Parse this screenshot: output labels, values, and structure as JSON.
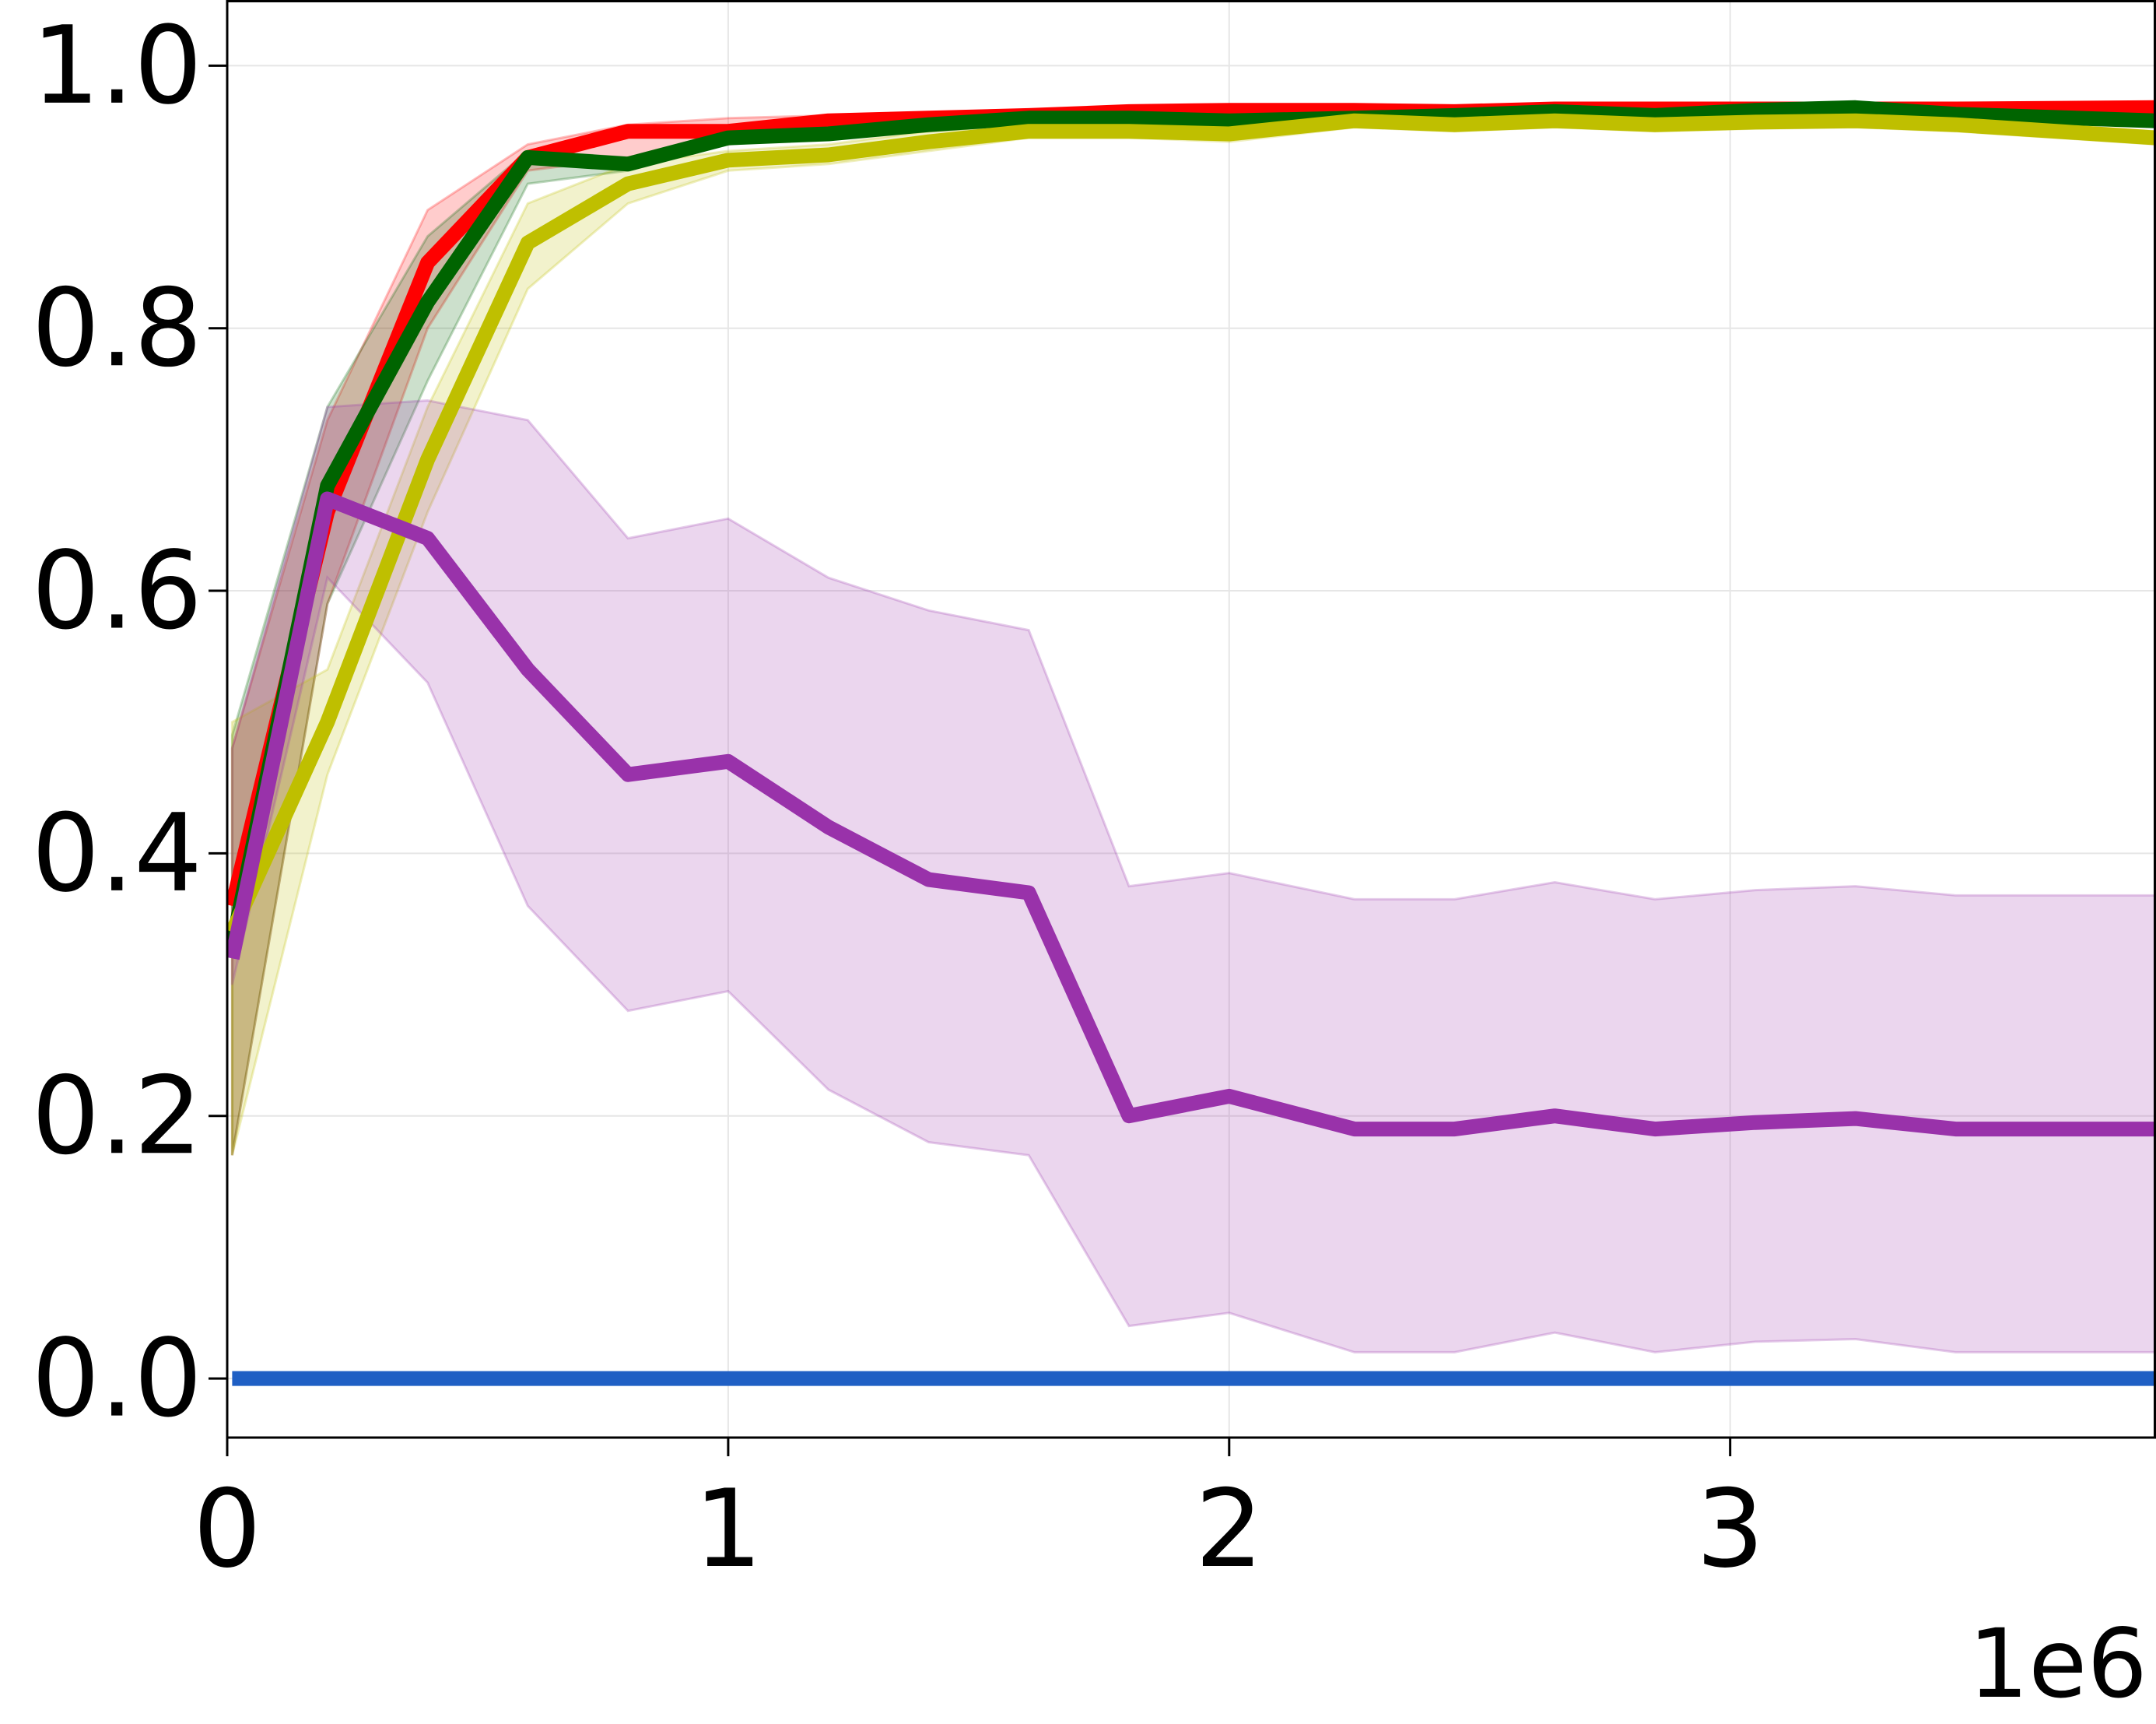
{
  "chart_data": {
    "type": "line",
    "title": "",
    "xlabel": "",
    "ylabel": "",
    "x_offset_label": "1e6",
    "xlim": [
      0,
      3850000
    ],
    "ylim": [
      -0.045,
      1.05
    ],
    "x_ticks": [
      {
        "value": 0,
        "label": "0"
      },
      {
        "value": 1000000,
        "label": "1"
      },
      {
        "value": 2000000,
        "label": "2"
      },
      {
        "value": 3000000,
        "label": "3"
      }
    ],
    "y_ticks": [
      {
        "value": 0.0,
        "label": "0.0"
      },
      {
        "value": 0.2,
        "label": "0.2"
      },
      {
        "value": 0.4,
        "label": "0.4"
      },
      {
        "value": 0.6,
        "label": "0.6"
      },
      {
        "value": 0.8,
        "label": "0.8"
      },
      {
        "value": 1.0,
        "label": "1.0"
      }
    ],
    "grid": true,
    "legend": "none",
    "x": [
      10000,
      200000,
      400000,
      600000,
      800000,
      1000000,
      1200000,
      1400000,
      1600000,
      1800000,
      2000000,
      2250000,
      2450000,
      2650000,
      2850000,
      3050000,
      3250000,
      3450000,
      3850000
    ],
    "series": [
      {
        "color": "#ff0000",
        "values": [
          0.36,
          0.66,
          0.85,
          0.93,
          0.95,
          0.95,
          0.958,
          0.96,
          0.962,
          0.965,
          0.966,
          0.966,
          0.965,
          0.967,
          0.967,
          0.967,
          0.967,
          0.967,
          0.968
        ],
        "lower": [
          0.17,
          0.59,
          0.8,
          0.92,
          0.93,
          0.94,
          0.95,
          0.955,
          0.958,
          0.96,
          0.96,
          0.96,
          0.96,
          0.962,
          0.962,
          0.962,
          0.962,
          0.962,
          0.963
        ],
        "upper": [
          0.48,
          0.73,
          0.89,
          0.94,
          0.955,
          0.96,
          0.962,
          0.964,
          0.966,
          0.968,
          0.969,
          0.969,
          0.969,
          0.97,
          0.97,
          0.97,
          0.97,
          0.97,
          0.971
        ]
      },
      {
        "color": "#006400",
        "values": [
          0.33,
          0.68,
          0.82,
          0.93,
          0.925,
          0.945,
          0.948,
          0.955,
          0.96,
          0.96,
          0.958,
          0.96,
          0.962,
          0.965,
          0.962,
          0.966,
          0.968,
          0.963,
          0.958
        ],
        "lower": [
          0.17,
          0.59,
          0.76,
          0.91,
          0.92,
          0.94,
          0.945,
          0.95,
          0.955,
          0.955,
          0.955,
          0.956,
          0.958,
          0.96,
          0.958,
          0.962,
          0.964,
          0.959,
          0.954
        ],
        "upper": [
          0.49,
          0.74,
          0.87,
          0.935,
          0.93,
          0.95,
          0.952,
          0.96,
          0.965,
          0.965,
          0.962,
          0.964,
          0.966,
          0.97,
          0.966,
          0.97,
          0.972,
          0.967,
          0.962
        ]
      },
      {
        "color": "#bfbf00",
        "values": [
          0.34,
          0.5,
          0.7,
          0.865,
          0.91,
          0.928,
          0.932,
          0.942,
          0.95,
          0.95,
          0.948,
          0.958,
          0.955,
          0.958,
          0.955,
          0.957,
          0.958,
          0.955,
          0.945
        ],
        "lower": [
          0.17,
          0.46,
          0.66,
          0.83,
          0.895,
          0.92,
          0.925,
          0.935,
          0.945,
          0.945,
          0.942,
          0.953,
          0.95,
          0.953,
          0.95,
          0.952,
          0.953,
          0.95,
          0.94
        ],
        "upper": [
          0.5,
          0.54,
          0.74,
          0.895,
          0.925,
          0.935,
          0.94,
          0.95,
          0.955,
          0.955,
          0.954,
          0.963,
          0.96,
          0.963,
          0.96,
          0.962,
          0.963,
          0.96,
          0.95
        ]
      },
      {
        "color": "#9932aa",
        "values": [
          0.32,
          0.67,
          0.64,
          0.54,
          0.46,
          0.47,
          0.42,
          0.38,
          0.37,
          0.2,
          0.215,
          0.19,
          0.19,
          0.2,
          0.19,
          0.195,
          0.198,
          0.19,
          0.19
        ],
        "lower": [
          0.3,
          0.61,
          0.53,
          0.36,
          0.28,
          0.295,
          0.22,
          0.18,
          0.17,
          0.04,
          0.05,
          0.02,
          0.02,
          0.035,
          0.02,
          0.028,
          0.03,
          0.02,
          0.02
        ],
        "upper": [
          0.48,
          0.74,
          0.745,
          0.73,
          0.64,
          0.655,
          0.61,
          0.585,
          0.57,
          0.375,
          0.385,
          0.365,
          0.365,
          0.378,
          0.365,
          0.372,
          0.375,
          0.368,
          0.368
        ]
      },
      {
        "color": "#1f5fc4",
        "values": [
          0.0,
          0.0,
          0.0,
          0.0,
          0.0,
          0.0,
          0.0,
          0.0,
          0.0,
          0.0,
          0.0,
          0.0,
          0.0,
          0.0,
          0.0,
          0.0,
          0.0,
          0.0,
          0.0
        ]
      }
    ]
  }
}
